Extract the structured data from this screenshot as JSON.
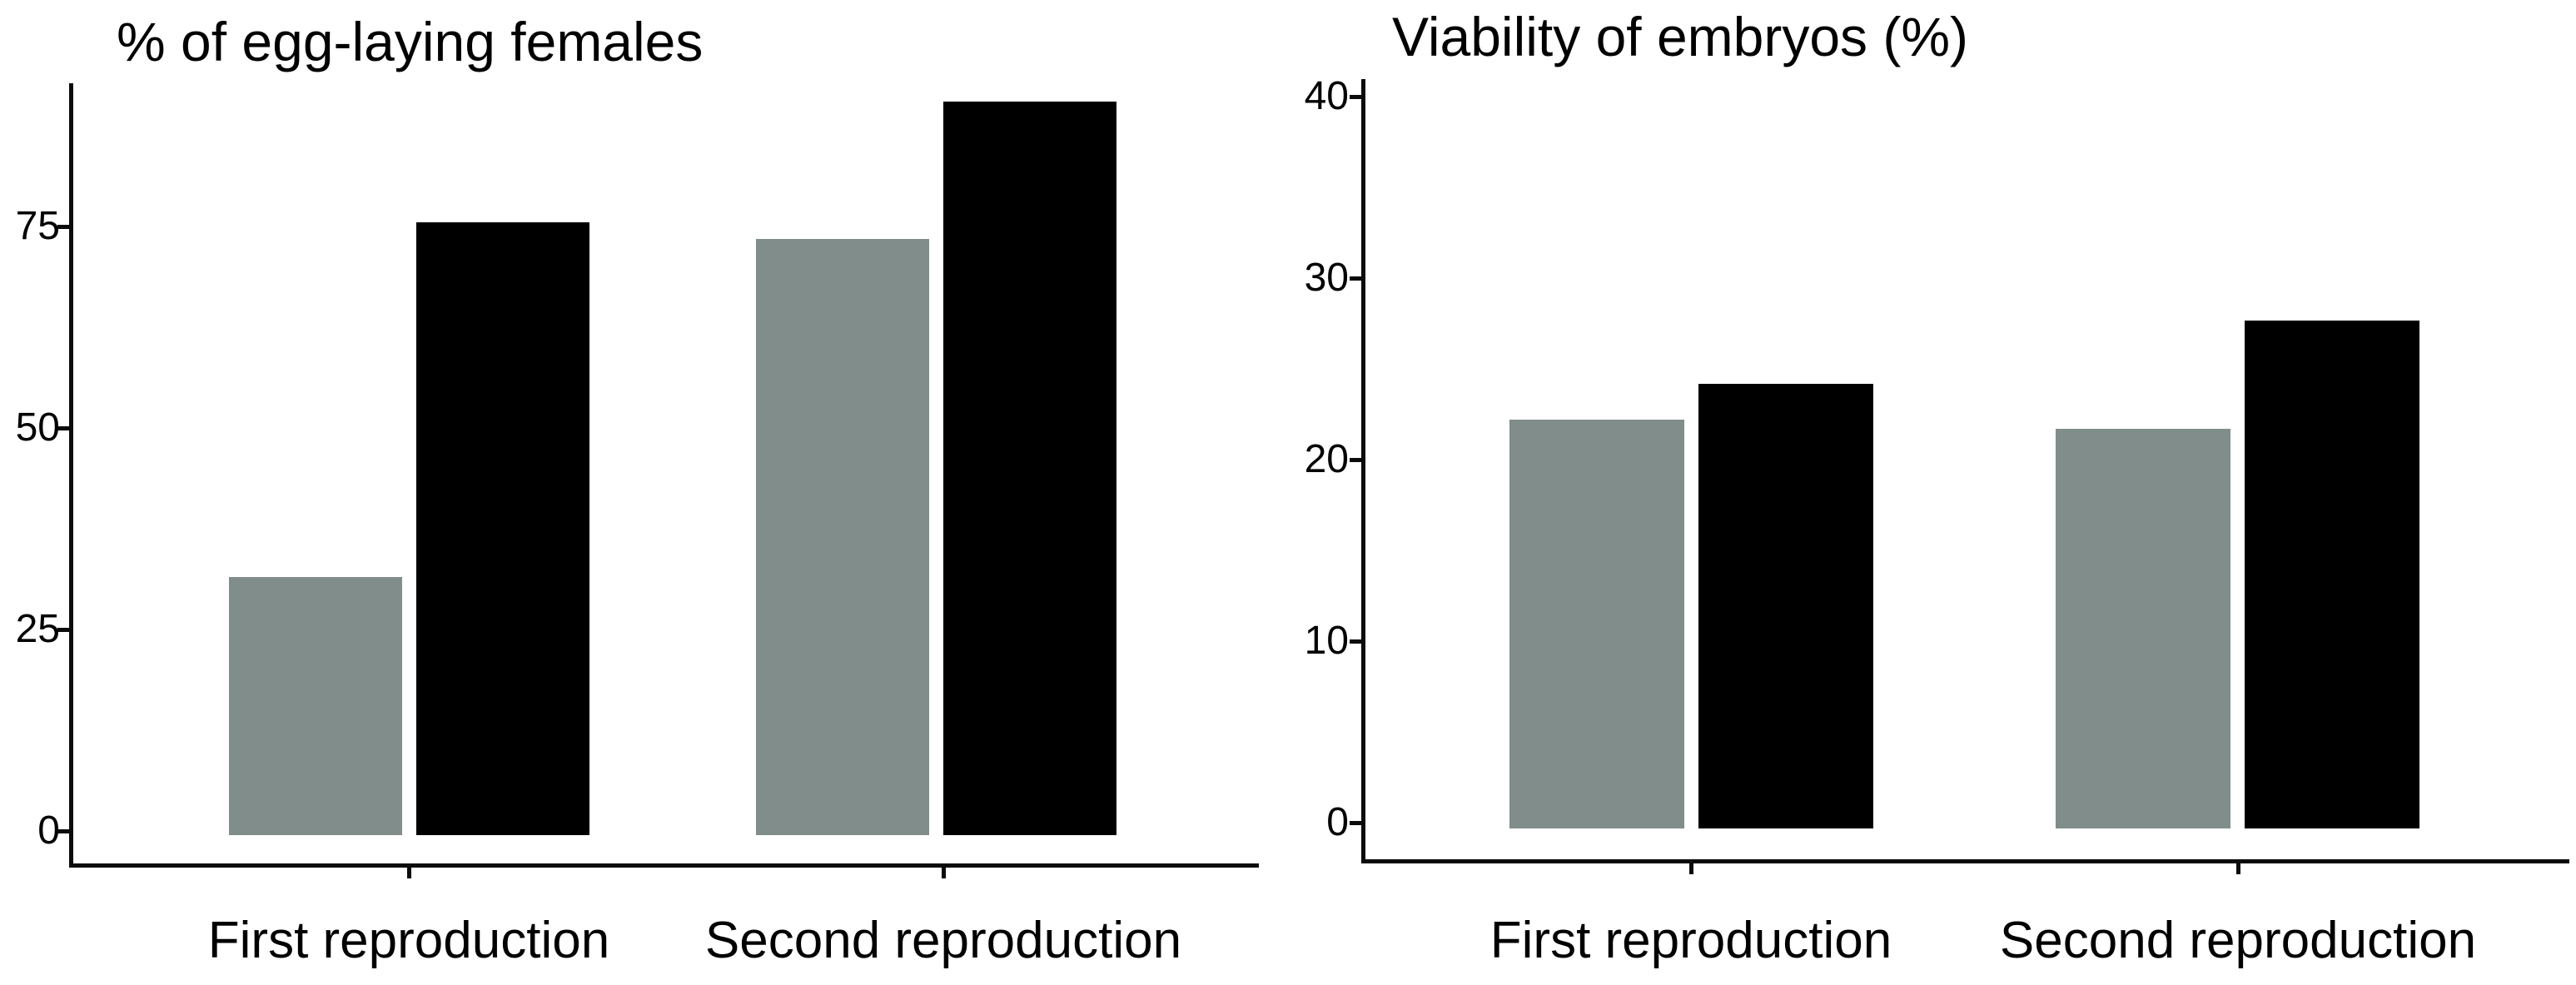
{
  "figure": {
    "background_color": "#ffffff",
    "text_color": "#000000",
    "axis_color": "#0b0b0b"
  },
  "chart_data": [
    {
      "type": "bar",
      "title": "% of egg-laying females",
      "categories": [
        "First reproduction",
        "Second reproduction"
      ],
      "series": [
        {
          "name": "gray-bars",
          "color": "#808D8B",
          "values": [
            32,
            74
          ]
        },
        {
          "name": "black-bars",
          "color": "#000000",
          "values": [
            76,
            91
          ]
        }
      ],
      "ylim": [
        0,
        95
      ],
      "yticks": [
        0,
        25,
        50,
        75
      ],
      "grid": false,
      "legend": "none"
    },
    {
      "type": "bar",
      "title": "Viability of embryos (%)",
      "categories": [
        "First reproduction",
        "Second reproduction"
      ],
      "series": [
        {
          "name": "gray-bars",
          "color": "#808D8B",
          "values": [
            22.5,
            22
          ]
        },
        {
          "name": "black-bars",
          "color": "#000000",
          "values": [
            24.5,
            28
          ]
        }
      ],
      "ylim": [
        0,
        42
      ],
      "yticks": [
        0,
        10,
        20,
        30,
        40
      ],
      "grid": false,
      "legend": "none"
    }
  ]
}
